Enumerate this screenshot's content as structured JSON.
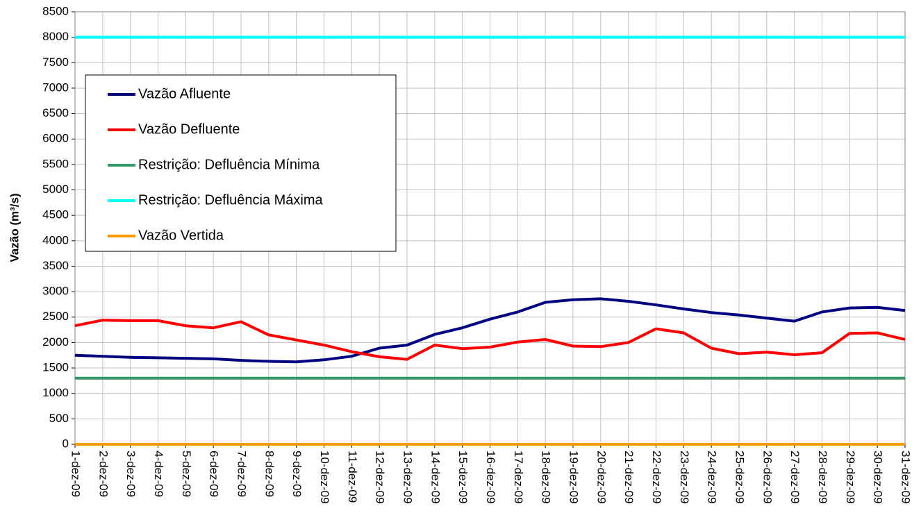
{
  "chart_data": {
    "type": "line",
    "y_label": "Vazão (m³/s)",
    "categories": [
      "1-dez-09",
      "2-dez-09",
      "3-dez-09",
      "4-dez-09",
      "5-dez-09",
      "6-dez-09",
      "7-dez-09",
      "8-dez-09",
      "9-dez-09",
      "10-dez-09",
      "11-dez-09",
      "12-dez-09",
      "13-dez-09",
      "14-dez-09",
      "15-dez-09",
      "16-dez-09",
      "17-dez-09",
      "18-dez-09",
      "19-dez-09",
      "20-dez-09",
      "21-dez-09",
      "22-dez-09",
      "23-dez-09",
      "24-dez-09",
      "25-dez-09",
      "26-dez-09",
      "27-dez-09",
      "28-dez-09",
      "29-dez-09",
      "30-dez-09",
      "31-dez-09"
    ],
    "series": [
      {
        "name": "Vazão Afluente",
        "color": "#000080",
        "values": [
          1750,
          1730,
          1710,
          1700,
          1690,
          1680,
          1650,
          1630,
          1620,
          1660,
          1730,
          1890,
          1950,
          2160,
          2290,
          2460,
          2600,
          2790,
          2840,
          2860,
          2810,
          2740,
          2660,
          2590,
          2540,
          2480,
          2420,
          2600,
          2680,
          2690,
          2630
        ]
      },
      {
        "name": "Vazão Defluente",
        "color": "#ff0000",
        "values": [
          2330,
          2440,
          2430,
          2430,
          2330,
          2290,
          2410,
          2150,
          2050,
          1950,
          1820,
          1720,
          1670,
          1950,
          1880,
          1910,
          2010,
          2060,
          1930,
          1920,
          2000,
          2270,
          2190,
          1890,
          1780,
          1810,
          1760,
          1800,
          2180,
          2190,
          2060
        ]
      },
      {
        "name": "Restrição: Defluência Mínima",
        "color": "#339966",
        "values": [
          1300,
          1300,
          1300,
          1300,
          1300,
          1300,
          1300,
          1300,
          1300,
          1300,
          1300,
          1300,
          1300,
          1300,
          1300,
          1300,
          1300,
          1300,
          1300,
          1300,
          1300,
          1300,
          1300,
          1300,
          1300,
          1300,
          1300,
          1300,
          1300,
          1300,
          1300
        ]
      },
      {
        "name": "Restrição: Defluência Máxima",
        "color": "#00ffff",
        "values": [
          8000,
          8000,
          8000,
          8000,
          8000,
          8000,
          8000,
          8000,
          8000,
          8000,
          8000,
          8000,
          8000,
          8000,
          8000,
          8000,
          8000,
          8000,
          8000,
          8000,
          8000,
          8000,
          8000,
          8000,
          8000,
          8000,
          8000,
          8000,
          8000,
          8000,
          8000
        ]
      },
      {
        "name": "Vazão Vertida",
        "color": "#ff9900",
        "values": [
          0,
          0,
          0,
          0,
          0,
          0,
          0,
          0,
          0,
          0,
          0,
          0,
          0,
          0,
          0,
          0,
          0,
          0,
          0,
          0,
          0,
          0,
          0,
          0,
          0,
          0,
          0,
          0,
          0,
          0,
          0
        ]
      }
    ],
    "ylim": [
      0,
      8500
    ],
    "yticks": [
      0,
      500,
      1000,
      1500,
      2000,
      2500,
      3000,
      3500,
      4000,
      4500,
      5000,
      5500,
      6000,
      6500,
      7000,
      7500,
      8000,
      8500
    ],
    "grid": true,
    "legend": "upper left"
  }
}
